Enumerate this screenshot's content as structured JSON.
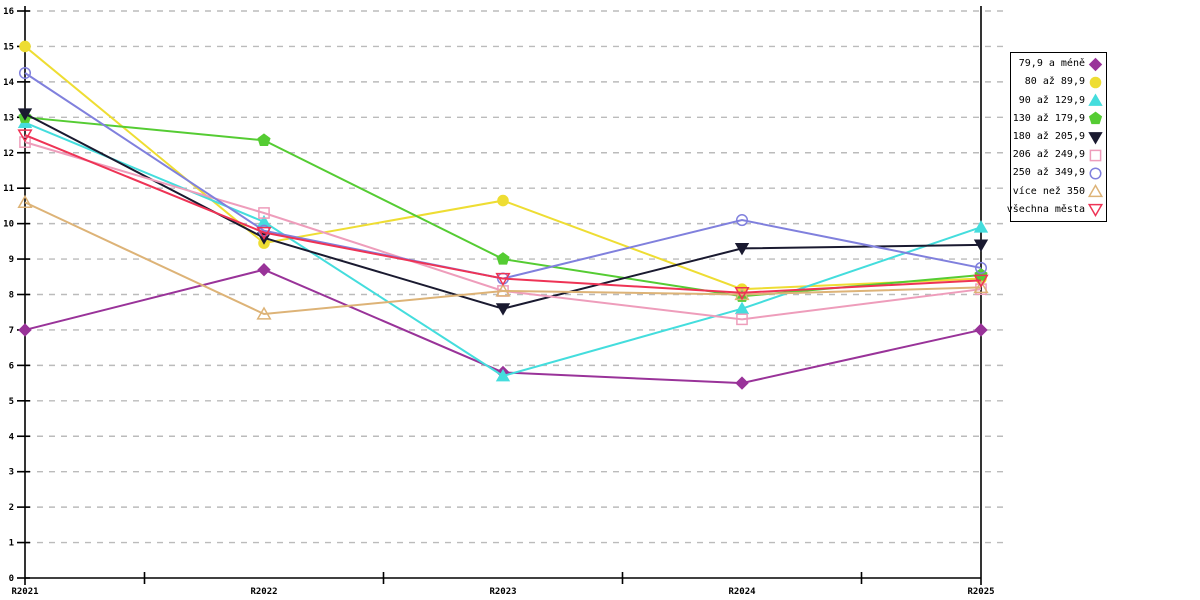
{
  "chart_data": {
    "type": "line",
    "title": "",
    "categories": [
      "R2021",
      "R2022",
      "R2023",
      "R2024",
      "R2025"
    ],
    "xlabel": "",
    "ylabel": "",
    "ylim": [
      0,
      16
    ],
    "ytick_step": 1,
    "grid": "horizontal-dashed",
    "gridline_color": "#bbbbbb",
    "axis_color": "#000000",
    "background_color": "#ffffff",
    "legend_position": "right-outside",
    "legend_border_color": "#000000",
    "series": [
      {
        "name": "79,9 a méně",
        "color": "#993399",
        "marker": "diamond",
        "style": "filled",
        "values": [
          7.0,
          8.7,
          5.8,
          5.5,
          7.0
        ]
      },
      {
        "name": "80 až 89,9",
        "color": "#EEDD33",
        "marker": "circle",
        "style": "filled",
        "values": [
          15.0,
          9.45,
          10.65,
          8.15,
          8.45
        ]
      },
      {
        "name": "90 až 129,9",
        "color": "#44DDDD",
        "marker": "triangle-up",
        "style": "filled",
        "values": [
          12.85,
          10.05,
          5.7,
          7.6,
          9.9
        ]
      },
      {
        "name": "130 až 179,9",
        "color": "#55CC33",
        "marker": "pentagon",
        "style": "filled",
        "values": [
          13.0,
          12.35,
          9.0,
          7.95,
          8.55
        ]
      },
      {
        "name": "180 až 205,9",
        "color": "#1A1A30",
        "marker": "triangle-down",
        "style": "filled",
        "values": [
          13.1,
          9.6,
          7.6,
          9.3,
          9.4
        ]
      },
      {
        "name": "206 až 249,9",
        "color": "#EE9DBB",
        "marker": "square",
        "style": "open",
        "values": [
          12.3,
          10.3,
          8.1,
          7.3,
          8.15
        ]
      },
      {
        "name": "250 až 349,9",
        "color": "#8080DD",
        "marker": "circle",
        "style": "open",
        "values": [
          14.25,
          9.8,
          8.45,
          10.1,
          8.75
        ]
      },
      {
        "name": "více než 350",
        "color": "#DDB377",
        "marker": "triangle-up",
        "style": "open",
        "values": [
          10.6,
          7.45,
          8.1,
          8.0,
          8.2
        ]
      },
      {
        "name": "všechna města",
        "color": "#EE3355",
        "marker": "triangle-down",
        "style": "open",
        "values": [
          12.5,
          9.75,
          8.45,
          8.05,
          8.4
        ]
      }
    ]
  }
}
